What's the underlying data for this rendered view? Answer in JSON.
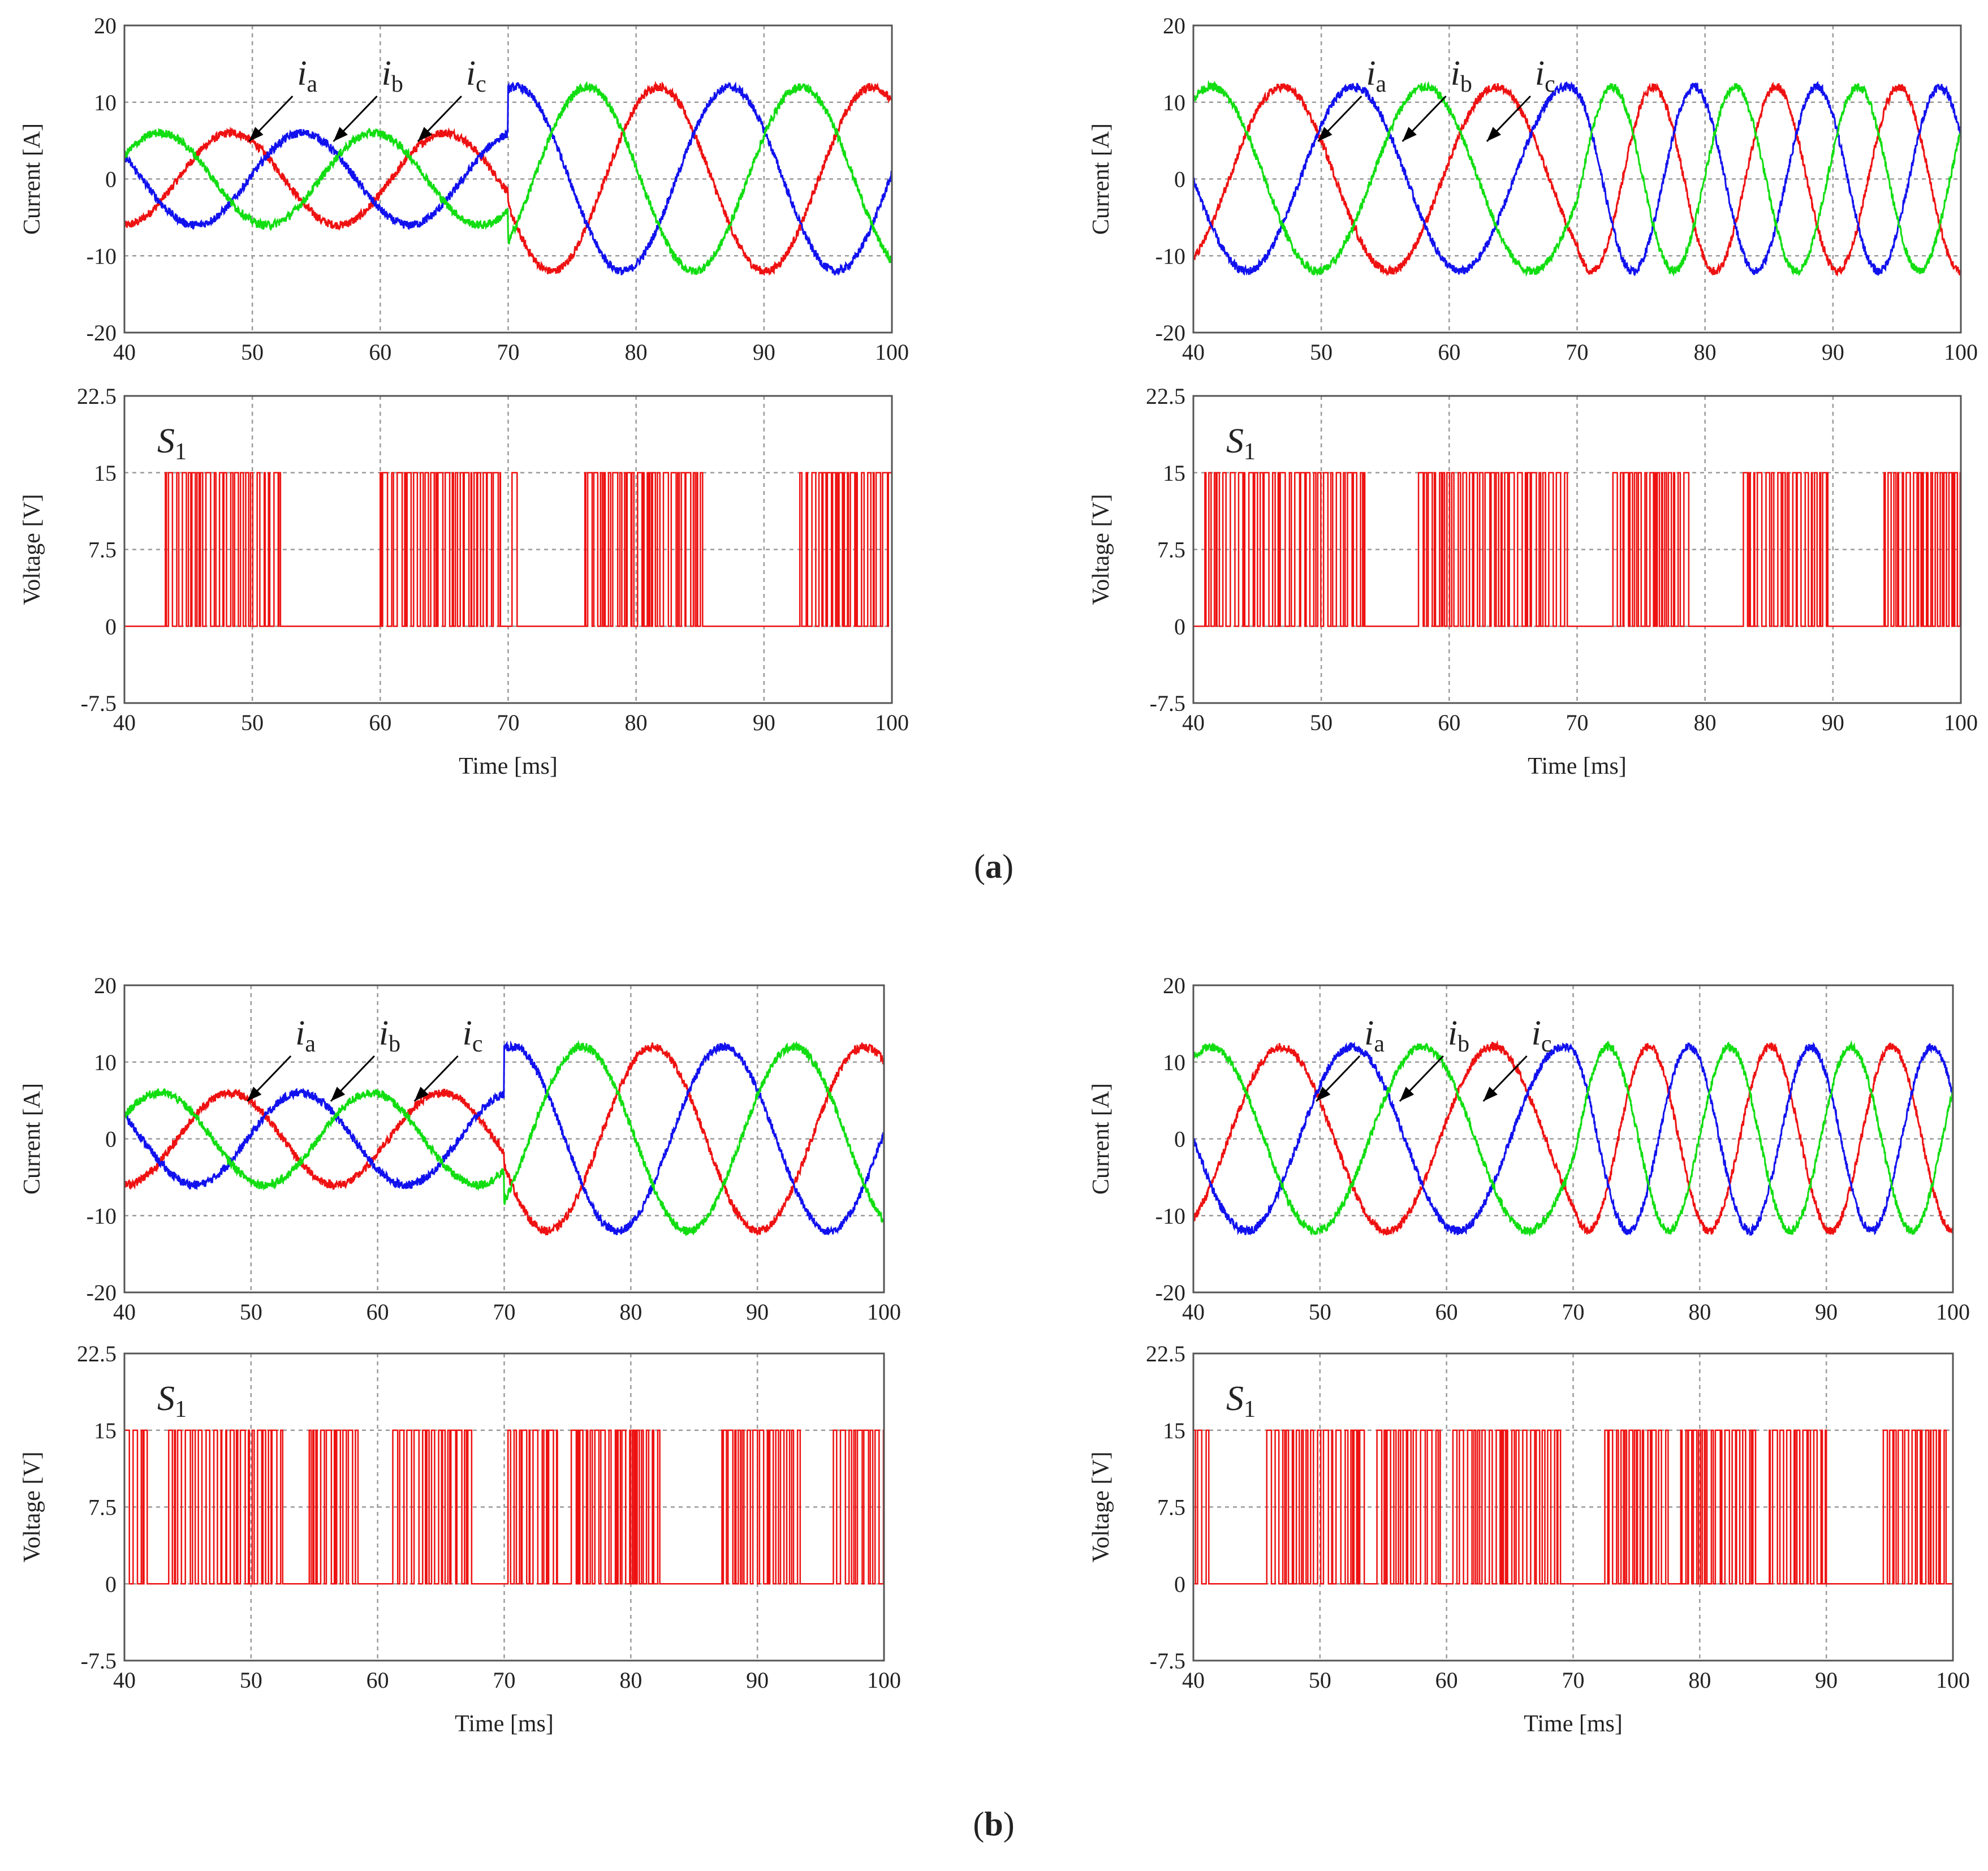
{
  "colors": {
    "ia": "#ee1111",
    "ib": "#1111ee",
    "ic": "#11dd11",
    "s1": "#ee1111"
  },
  "panel_captions": [
    "(a)",
    "(b)"
  ],
  "chart_data": [
    {
      "id": "a-left-current",
      "type": "line",
      "group": "(a)",
      "column": "left",
      "xlabel": "",
      "ylabel": "Current [A]",
      "xlim": [
        40,
        100
      ],
      "ylim": [
        -20,
        20
      ],
      "xticks": [
        "40",
        "50",
        "60",
        "70",
        "80",
        "90",
        "100"
      ],
      "yticks": [
        "20",
        "10",
        "0",
        "-10",
        "-20"
      ],
      "series": [
        {
          "name": "ia",
          "label_main": "i",
          "label_sub": "a",
          "amplitude_before": 6,
          "amplitude_after": 12,
          "period_before_ms": 16.7,
          "period_after_ms": 16.7,
          "phase_deg": -90
        },
        {
          "name": "ib",
          "label_main": "i",
          "label_sub": "b",
          "amplitude_before": 6,
          "amplitude_after": 12,
          "period_before_ms": 16.7,
          "period_after_ms": 16.7,
          "phase_deg": 150
        },
        {
          "name": "ic",
          "label_main": "i",
          "label_sub": "c",
          "amplitude_before": 6,
          "amplitude_after": 12,
          "period_before_ms": 16.7,
          "period_after_ms": 16.7,
          "phase_deg": 30
        }
      ],
      "step_time_ms": 70
    },
    {
      "id": "a-left-voltage",
      "type": "line",
      "group": "(a)",
      "column": "left",
      "title": "S1",
      "title_main": "S",
      "title_sub": "1",
      "xlabel": "Time [ms]",
      "ylabel": "Voltage [V]",
      "xlim": [
        40,
        100
      ],
      "ylim": [
        -7.5,
        22.5
      ],
      "xticks": [
        "40",
        "50",
        "60",
        "70",
        "80",
        "90",
        "100"
      ],
      "yticks": [
        "22.5",
        "15",
        "7.5",
        "0",
        "-7.5"
      ],
      "on_level_V": 15,
      "off_level_V": 0,
      "switching_bursts_ms": [
        [
          43.2,
          52.2
        ],
        [
          60,
          69.4
        ],
        [
          70.3,
          70.8
        ],
        [
          76,
          85.2
        ],
        [
          92.8,
          100
        ]
      ]
    },
    {
      "id": "a-right-current",
      "type": "line",
      "group": "(a)",
      "column": "right",
      "xlabel": "",
      "ylabel": "Current [A]",
      "xlim": [
        40,
        100
      ],
      "ylim": [
        -20,
        20
      ],
      "xticks": [
        "40",
        "50",
        "60",
        "70",
        "80",
        "90",
        "100"
      ],
      "yticks": [
        "20",
        "10",
        "0",
        "-10",
        "-20"
      ],
      "series": [
        {
          "name": "ia",
          "label_main": "i",
          "label_sub": "a",
          "amplitude_before": 12,
          "amplitude_after": 12,
          "period_before_ms": 16.7,
          "period_after_ms": 9.6,
          "phase_deg": -60
        },
        {
          "name": "ib",
          "label_main": "i",
          "label_sub": "b",
          "amplitude_before": 12,
          "amplitude_after": 12,
          "period_before_ms": 16.7,
          "period_after_ms": 9.6,
          "phase_deg": 180
        },
        {
          "name": "ic",
          "label_main": "i",
          "label_sub": "c",
          "amplitude_before": 12,
          "amplitude_after": 12,
          "period_before_ms": 16.7,
          "period_after_ms": 9.6,
          "phase_deg": 60
        }
      ],
      "step_time_ms": 70
    },
    {
      "id": "a-right-voltage",
      "type": "line",
      "group": "(a)",
      "column": "right",
      "title": "S1",
      "title_main": "S",
      "title_sub": "1",
      "xlabel": "Time [ms]",
      "ylabel": "Voltage [V]",
      "xlim": [
        40,
        100
      ],
      "ylim": [
        -7.5,
        22.5
      ],
      "xticks": [
        "40",
        "50",
        "60",
        "70",
        "80",
        "90",
        "100"
      ],
      "yticks": [
        "22.5",
        "15",
        "7.5",
        "0",
        "-7.5"
      ],
      "on_level_V": 15,
      "off_level_V": 0,
      "switching_bursts_ms": [
        [
          40.9,
          53.4
        ],
        [
          57.6,
          69.4
        ],
        [
          72.8,
          79
        ],
        [
          83,
          89.6
        ],
        [
          94,
          100
        ]
      ]
    },
    {
      "id": "b-left-current",
      "type": "line",
      "group": "(b)",
      "column": "left",
      "xlabel": "",
      "ylabel": "Current [A]",
      "xlim": [
        40,
        100
      ],
      "ylim": [
        -20,
        20
      ],
      "xticks": [
        "40",
        "50",
        "60",
        "70",
        "80",
        "90",
        "100"
      ],
      "yticks": [
        "20",
        "10",
        "0",
        "-10",
        "-20"
      ],
      "series": [
        {
          "name": "ia",
          "label_main": "i",
          "label_sub": "a",
          "amplitude_before": 6,
          "amplitude_after": 12,
          "period_before_ms": 16.7,
          "period_after_ms": 16.7,
          "phase_deg": -90
        },
        {
          "name": "ib",
          "label_main": "i",
          "label_sub": "b",
          "amplitude_before": 6,
          "amplitude_after": 12,
          "period_before_ms": 16.7,
          "period_after_ms": 16.7,
          "phase_deg": 150
        },
        {
          "name": "ic",
          "label_main": "i",
          "label_sub": "c",
          "amplitude_before": 6,
          "amplitude_after": 12,
          "period_before_ms": 16.7,
          "period_after_ms": 16.7,
          "phase_deg": 30
        }
      ],
      "step_time_ms": 70
    },
    {
      "id": "b-left-voltage",
      "type": "line",
      "group": "(b)",
      "column": "left",
      "title": "S1",
      "title_main": "S",
      "title_sub": "1",
      "xlabel": "Time [ms]",
      "ylabel": "Voltage [V]",
      "xlim": [
        40,
        100
      ],
      "ylim": [
        -7.5,
        22.5
      ],
      "xticks": [
        "40",
        "50",
        "60",
        "70",
        "80",
        "90",
        "100"
      ],
      "yticks": [
        "22.5",
        "15",
        "7.5",
        "0",
        "-7.5"
      ],
      "on_level_V": 15,
      "off_level_V": 0,
      "switching_bursts_ms": [
        [
          40,
          41.8
        ],
        [
          43.5,
          52.5
        ],
        [
          54.6,
          58.5
        ],
        [
          61.2,
          67.5
        ],
        [
          70.3,
          74.2
        ],
        [
          75.3,
          82.3
        ],
        [
          87.2,
          93.5
        ],
        [
          96,
          100
        ]
      ]
    },
    {
      "id": "b-right-current",
      "type": "line",
      "group": "(b)",
      "column": "right",
      "xlabel": "",
      "ylabel": "Current [A]",
      "xlim": [
        40,
        100
      ],
      "ylim": [
        -20,
        20
      ],
      "xticks": [
        "40",
        "50",
        "60",
        "70",
        "80",
        "90",
        "100"
      ],
      "yticks": [
        "20",
        "10",
        "0",
        "-10",
        "-20"
      ],
      "series": [
        {
          "name": "ia",
          "label_main": "i",
          "label_sub": "a",
          "amplitude_before": 12,
          "amplitude_after": 12,
          "period_before_ms": 16.7,
          "period_after_ms": 9.6,
          "phase_deg": -60
        },
        {
          "name": "ib",
          "label_main": "i",
          "label_sub": "b",
          "amplitude_before": 12,
          "amplitude_after": 12,
          "period_before_ms": 16.7,
          "period_after_ms": 9.6,
          "phase_deg": 180
        },
        {
          "name": "ic",
          "label_main": "i",
          "label_sub": "c",
          "amplitude_before": 12,
          "amplitude_after": 12,
          "period_before_ms": 16.7,
          "period_after_ms": 9.6,
          "phase_deg": 60
        }
      ],
      "step_time_ms": 70
    },
    {
      "id": "b-right-voltage",
      "type": "line",
      "group": "(b)",
      "column": "right",
      "title": "S1",
      "title_main": "S",
      "title_sub": "1",
      "xlabel": "Time [ms]",
      "ylabel": "Voltage [V]",
      "xlim": [
        40,
        100
      ],
      "ylim": [
        -7.5,
        22.5
      ],
      "xticks": [
        "40",
        "50",
        "60",
        "70",
        "80",
        "90",
        "100"
      ],
      "yticks": [
        "22.5",
        "15",
        "7.5",
        "0",
        "-7.5"
      ],
      "on_level_V": 15,
      "off_level_V": 0,
      "switching_bursts_ms": [
        [
          40,
          41.5
        ],
        [
          45.8,
          53.5
        ],
        [
          54.5,
          59.5
        ],
        [
          60.5,
          69
        ],
        [
          72.5,
          77.5
        ],
        [
          78.5,
          84.5
        ],
        [
          85.5,
          90
        ],
        [
          94.5,
          99.5
        ]
      ]
    }
  ]
}
